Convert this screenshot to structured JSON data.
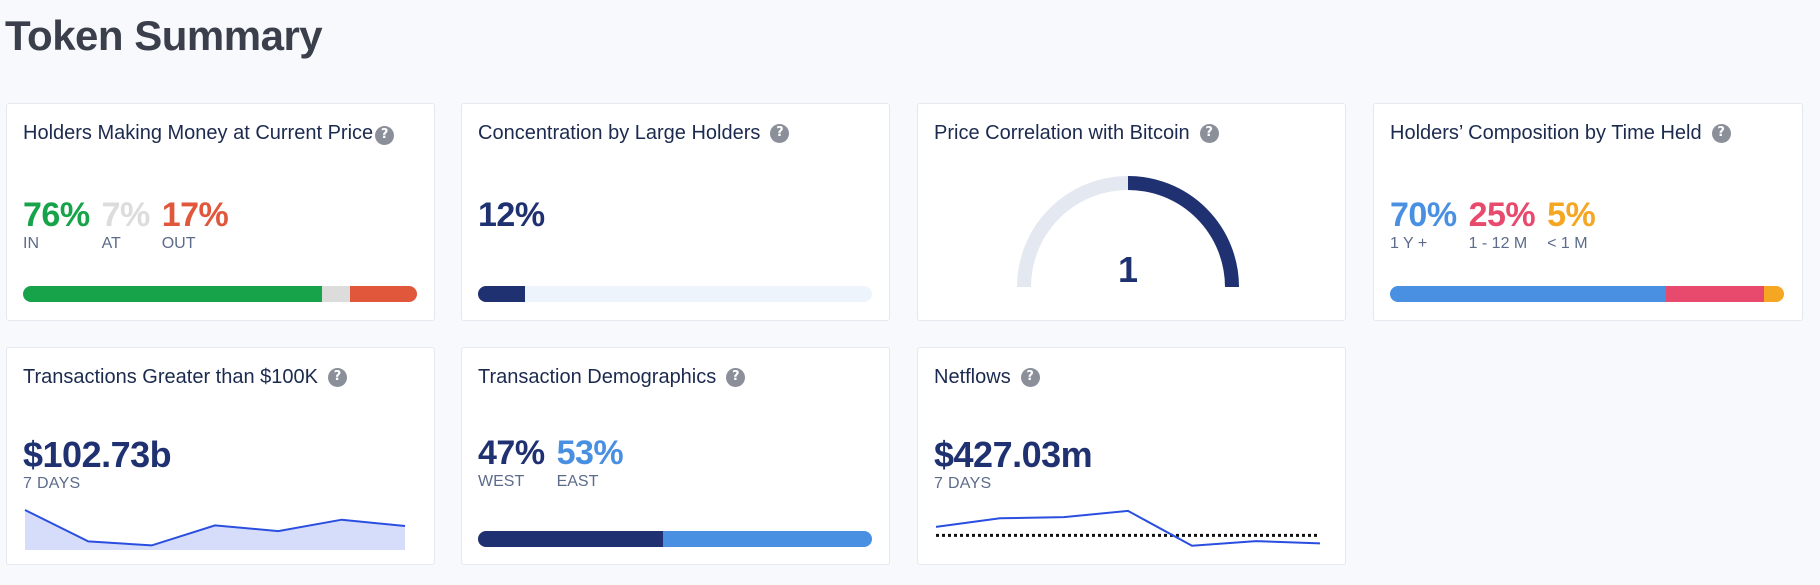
{
  "page": {
    "title": "Token Summary"
  },
  "colors": {
    "green": "#16a34a",
    "grey": "#dcdcdc",
    "red": "#e0573c",
    "navy": "#1f3170",
    "light": "#eef4fb",
    "blue": "#4a90e2",
    "pink": "#e84a6e",
    "orange": "#f5a623"
  },
  "cards": {
    "holders_money": {
      "title": "Holders Making Money at Current Price",
      "stats": [
        {
          "value": "76%",
          "label": "IN",
          "share": 76
        },
        {
          "value": "7%",
          "label": "AT",
          "share": 7
        },
        {
          "value": "17%",
          "label": "OUT",
          "share": 17
        }
      ]
    },
    "concentration": {
      "title": "Concentration by Large Holders",
      "value": "12%",
      "share": 12
    },
    "correlation": {
      "title": "Price Correlation with Bitcoin",
      "value": "1",
      "level": 1
    },
    "composition": {
      "title": "Holders’ Composition by Time Held",
      "stats": [
        {
          "value": "70%",
          "label": "1 Y +",
          "share": 70
        },
        {
          "value": "25%",
          "label": "1 - 12 M",
          "share": 25
        },
        {
          "value": "5%",
          "label": "< 1 M",
          "share": 5
        }
      ]
    },
    "large_tx": {
      "title": "Transactions Greater than $100K",
      "value": "$102.73b",
      "period": "7 DAYS",
      "sparkline": [
        10.0,
        4.5,
        3.8,
        7.3,
        6.3,
        8.3,
        7.2
      ]
    },
    "demographics": {
      "title": "Transaction Demographics",
      "stats": [
        {
          "value": "47%",
          "label": "WEST",
          "share": 47
        },
        {
          "value": "53%",
          "label": "EAST",
          "share": 53
        }
      ]
    },
    "netflows": {
      "title": "Netflows",
      "value": "$427.03m",
      "period": "7 DAYS",
      "sparkline": [
        2.2,
        3.7,
        3.9,
        5.0,
        -1.1,
        -0.3,
        -0.7
      ],
      "baseline": 0.7
    }
  }
}
